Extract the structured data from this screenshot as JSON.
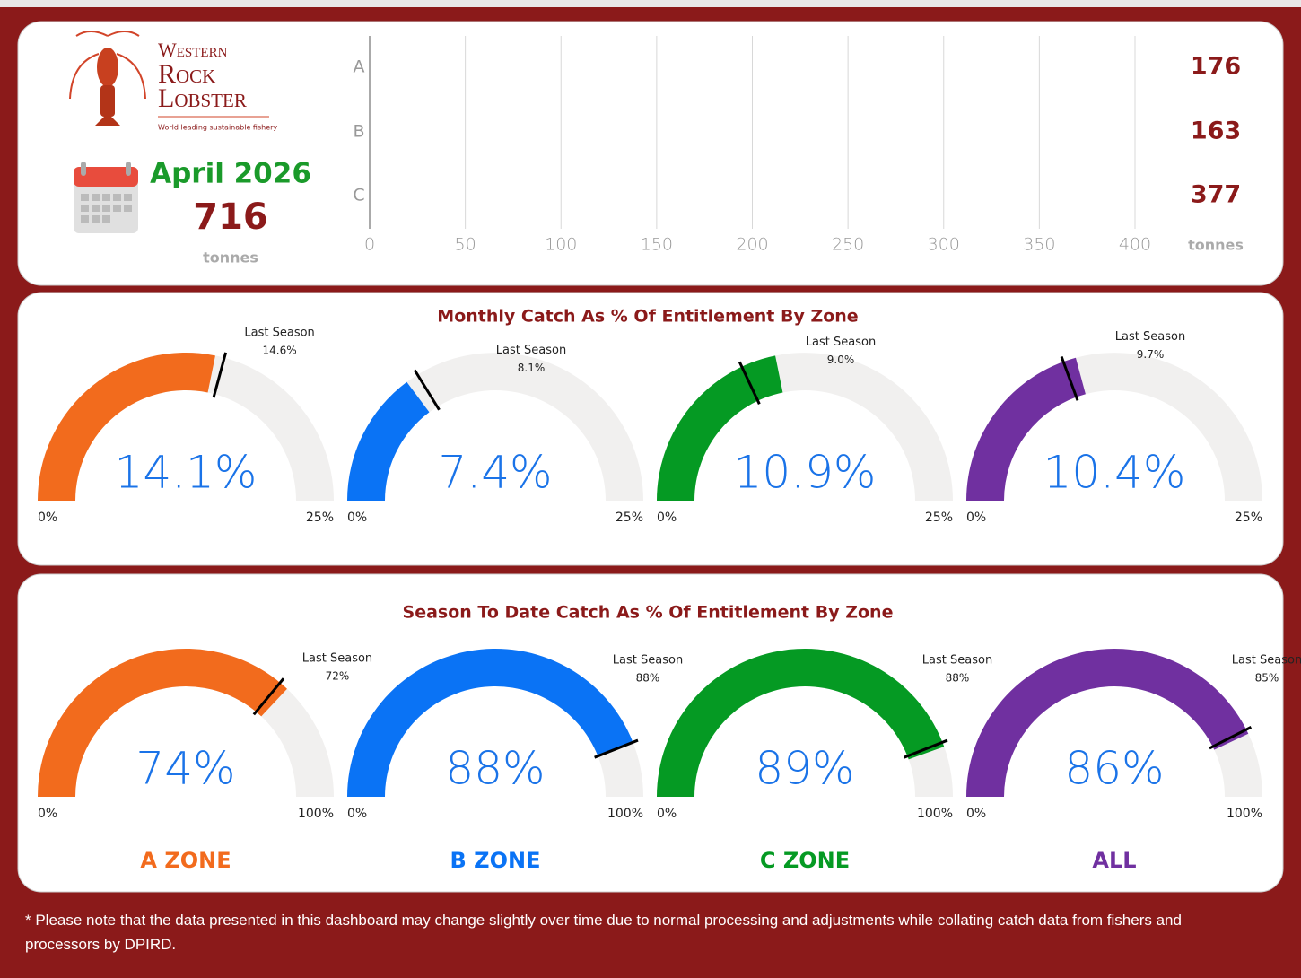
{
  "header": {
    "logo": [
      "Western",
      "Rock",
      "Lobster"
    ],
    "logo_tagline": "World leading sustainable fishery",
    "month": "April 2026",
    "total": 716,
    "total_unit": "tonnes"
  },
  "chart_data": [
    {
      "type": "pictogram",
      "categories": [
        "A",
        "B",
        "C"
      ],
      "values": [
        176,
        163,
        377
      ],
      "color": "#8b1a1a",
      "xlim": [
        0,
        400
      ],
      "xticks": [
        0,
        50,
        100,
        150,
        200,
        250,
        300,
        350,
        400
      ],
      "grid": true,
      "unit": "tonnes"
    },
    {
      "type": "gauge",
      "title": "Monthly Catch As % Of Entitlement By Zone",
      "ylim": [
        0,
        25
      ],
      "yticks": [
        {
          "value": 0,
          "label": "0%"
        },
        {
          "value": 25,
          "label": "25%"
        }
      ],
      "values": [
        14.1,
        7.4,
        10.9,
        10.4
      ],
      "value_labels": [
        "14.1%",
        "7.4%",
        "10.9%",
        "10.4%"
      ],
      "target_name": "Last Season",
      "targets": [
        14.6,
        8.1,
        9.0,
        9.7
      ],
      "target_labels": [
        "14.6%",
        "8.1%",
        "9.0%",
        "9.7%"
      ],
      "colors": [
        "#f26b1d",
        "#0a73f5",
        "#059a23",
        "#7030a0"
      ]
    },
    {
      "type": "gauge",
      "title": "Season To Date Catch As % Of Entitlement By Zone",
      "ylim": [
        0,
        100
      ],
      "yticks": [
        {
          "value": 0,
          "label": "0%"
        },
        {
          "value": 100,
          "label": "100%"
        }
      ],
      "categories": [
        "A ZONE",
        "B ZONE",
        "C ZONE",
        "ALL"
      ],
      "values": [
        74,
        88,
        89,
        86
      ],
      "value_labels": [
        "74%",
        "88%",
        "89%",
        "86%"
      ],
      "target_name": "Last Season",
      "targets": [
        72,
        88,
        88,
        85
      ],
      "target_labels": [
        "72%",
        "88%",
        "88%",
        "85%"
      ],
      "colors": [
        "#f26b1d",
        "#0a73f5",
        "#059a23",
        "#7030a0"
      ]
    }
  ],
  "footnote": "* Please note that the data presented in this dashboard may change slightly over time due to normal processing and adjustments while collating catch data from fishers and processors by DPIRD."
}
